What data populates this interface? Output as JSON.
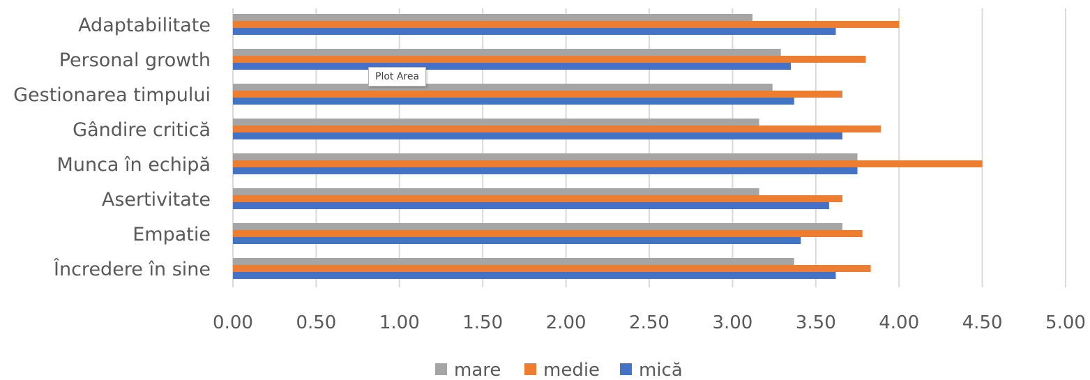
{
  "chart_data": {
    "type": "bar",
    "orientation": "horizontal",
    "categories": [
      "Adaptabilitate",
      "Personal growth",
      "Gestionarea timpului",
      "Gândire critică",
      "Munca în echipă",
      "Asertivitate",
      "Empatie",
      "Încredere în sine"
    ],
    "series": [
      {
        "name": "mare",
        "color": "#a5a5a5",
        "values": [
          3.12,
          3.29,
          3.24,
          3.16,
          3.75,
          3.16,
          3.66,
          3.37
        ]
      },
      {
        "name": "medie",
        "color": "#ed7d31",
        "values": [
          4.0,
          3.8,
          3.66,
          3.89,
          4.5,
          3.66,
          3.78,
          3.83
        ]
      },
      {
        "name": "mică",
        "color": "#4472c4",
        "values": [
          3.62,
          3.35,
          3.37,
          3.66,
          3.75,
          3.58,
          3.41,
          3.62
        ]
      }
    ],
    "xticks": [
      "0.00",
      "0.50",
      "1.00",
      "1.50",
      "2.00",
      "2.50",
      "3.00",
      "3.50",
      "4.00",
      "4.50",
      "5.00"
    ],
    "xlim": [
      0,
      5
    ],
    "grid": "vertical",
    "legend_position": "bottom"
  },
  "tooltip": "Plot Area"
}
